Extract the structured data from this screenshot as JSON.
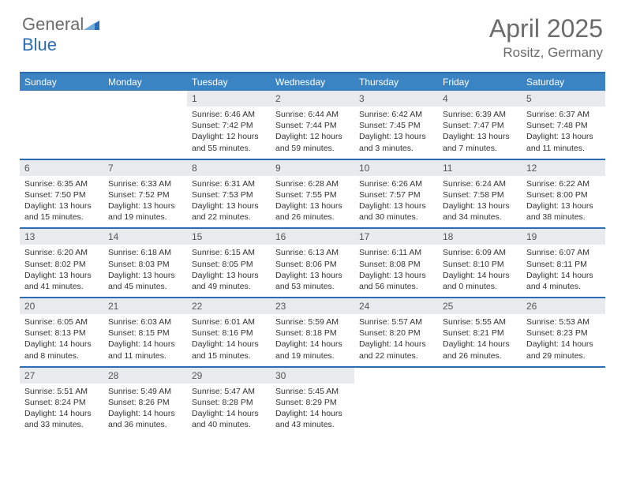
{
  "brand": {
    "name_gray": "General",
    "name_blue": "Blue"
  },
  "title": "April 2025",
  "location": "Rositz, Germany",
  "colors": {
    "header_bg": "#3b84c4",
    "header_border": "#2a6db5",
    "daynum_bg": "#e8eaed",
    "text_muted": "#6b6b6b",
    "text_body": "#333333",
    "white": "#ffffff"
  },
  "weekdays": [
    "Sunday",
    "Monday",
    "Tuesday",
    "Wednesday",
    "Thursday",
    "Friday",
    "Saturday"
  ],
  "weeks": [
    [
      null,
      null,
      {
        "d": "1",
        "sr": "6:46 AM",
        "ss": "7:42 PM",
        "dl": "12 hours and 55 minutes."
      },
      {
        "d": "2",
        "sr": "6:44 AM",
        "ss": "7:44 PM",
        "dl": "12 hours and 59 minutes."
      },
      {
        "d": "3",
        "sr": "6:42 AM",
        "ss": "7:45 PM",
        "dl": "13 hours and 3 minutes."
      },
      {
        "d": "4",
        "sr": "6:39 AM",
        "ss": "7:47 PM",
        "dl": "13 hours and 7 minutes."
      },
      {
        "d": "5",
        "sr": "6:37 AM",
        "ss": "7:48 PM",
        "dl": "13 hours and 11 minutes."
      }
    ],
    [
      {
        "d": "6",
        "sr": "6:35 AM",
        "ss": "7:50 PM",
        "dl": "13 hours and 15 minutes."
      },
      {
        "d": "7",
        "sr": "6:33 AM",
        "ss": "7:52 PM",
        "dl": "13 hours and 19 minutes."
      },
      {
        "d": "8",
        "sr": "6:31 AM",
        "ss": "7:53 PM",
        "dl": "13 hours and 22 minutes."
      },
      {
        "d": "9",
        "sr": "6:28 AM",
        "ss": "7:55 PM",
        "dl": "13 hours and 26 minutes."
      },
      {
        "d": "10",
        "sr": "6:26 AM",
        "ss": "7:57 PM",
        "dl": "13 hours and 30 minutes."
      },
      {
        "d": "11",
        "sr": "6:24 AM",
        "ss": "7:58 PM",
        "dl": "13 hours and 34 minutes."
      },
      {
        "d": "12",
        "sr": "6:22 AM",
        "ss": "8:00 PM",
        "dl": "13 hours and 38 minutes."
      }
    ],
    [
      {
        "d": "13",
        "sr": "6:20 AM",
        "ss": "8:02 PM",
        "dl": "13 hours and 41 minutes."
      },
      {
        "d": "14",
        "sr": "6:18 AM",
        "ss": "8:03 PM",
        "dl": "13 hours and 45 minutes."
      },
      {
        "d": "15",
        "sr": "6:15 AM",
        "ss": "8:05 PM",
        "dl": "13 hours and 49 minutes."
      },
      {
        "d": "16",
        "sr": "6:13 AM",
        "ss": "8:06 PM",
        "dl": "13 hours and 53 minutes."
      },
      {
        "d": "17",
        "sr": "6:11 AM",
        "ss": "8:08 PM",
        "dl": "13 hours and 56 minutes."
      },
      {
        "d": "18",
        "sr": "6:09 AM",
        "ss": "8:10 PM",
        "dl": "14 hours and 0 minutes."
      },
      {
        "d": "19",
        "sr": "6:07 AM",
        "ss": "8:11 PM",
        "dl": "14 hours and 4 minutes."
      }
    ],
    [
      {
        "d": "20",
        "sr": "6:05 AM",
        "ss": "8:13 PM",
        "dl": "14 hours and 8 minutes."
      },
      {
        "d": "21",
        "sr": "6:03 AM",
        "ss": "8:15 PM",
        "dl": "14 hours and 11 minutes."
      },
      {
        "d": "22",
        "sr": "6:01 AM",
        "ss": "8:16 PM",
        "dl": "14 hours and 15 minutes."
      },
      {
        "d": "23",
        "sr": "5:59 AM",
        "ss": "8:18 PM",
        "dl": "14 hours and 19 minutes."
      },
      {
        "d": "24",
        "sr": "5:57 AM",
        "ss": "8:20 PM",
        "dl": "14 hours and 22 minutes."
      },
      {
        "d": "25",
        "sr": "5:55 AM",
        "ss": "8:21 PM",
        "dl": "14 hours and 26 minutes."
      },
      {
        "d": "26",
        "sr": "5:53 AM",
        "ss": "8:23 PM",
        "dl": "14 hours and 29 minutes."
      }
    ],
    [
      {
        "d": "27",
        "sr": "5:51 AM",
        "ss": "8:24 PM",
        "dl": "14 hours and 33 minutes."
      },
      {
        "d": "28",
        "sr": "5:49 AM",
        "ss": "8:26 PM",
        "dl": "14 hours and 36 minutes."
      },
      {
        "d": "29",
        "sr": "5:47 AM",
        "ss": "8:28 PM",
        "dl": "14 hours and 40 minutes."
      },
      {
        "d": "30",
        "sr": "5:45 AM",
        "ss": "8:29 PM",
        "dl": "14 hours and 43 minutes."
      },
      null,
      null,
      null
    ]
  ],
  "labels": {
    "sunrise": "Sunrise:",
    "sunset": "Sunset:",
    "daylight": "Daylight:"
  }
}
